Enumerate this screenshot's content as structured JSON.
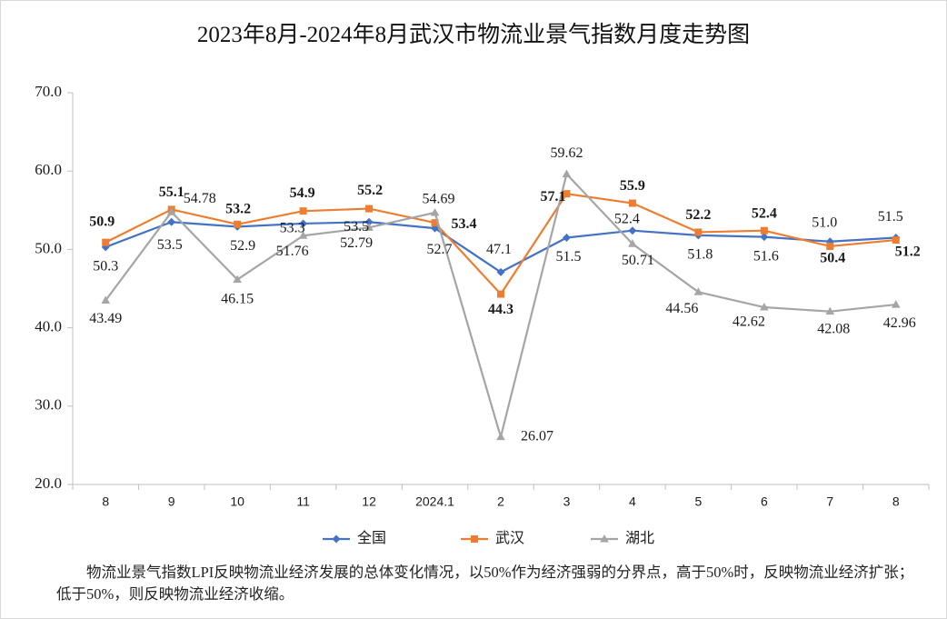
{
  "chart_data": {
    "type": "line",
    "title": "2023年8月-2024年8月武汉市物流业景气指数月度走势图",
    "categories": [
      "8",
      "9",
      "10",
      "11",
      "12",
      "2024.1",
      "2",
      "3",
      "4",
      "5",
      "6",
      "7",
      "8"
    ],
    "ylim": [
      20,
      70
    ],
    "yticks": [
      "20.0",
      "30.0",
      "40.0",
      "50.0",
      "60.0",
      "70.0"
    ],
    "grid": false,
    "legend_position": "bottom",
    "series": [
      {
        "name": "全国",
        "color": "#4472c4",
        "marker": "diamond",
        "values": [
          50.3,
          53.5,
          52.9,
          53.3,
          53.5,
          52.7,
          47.1,
          51.5,
          52.4,
          51.8,
          51.6,
          51.0,
          51.5
        ],
        "labels": [
          "50.3",
          "53.5",
          "52.9",
          "53.3",
          "53.5",
          "52.7",
          "47.1",
          "51.5",
          "52.4",
          "51.8",
          "51.6",
          "51.0",
          "51.5"
        ]
      },
      {
        "name": "武汉",
        "color": "#ed7d31",
        "marker": "square",
        "bold_labels": true,
        "values": [
          50.9,
          55.1,
          53.2,
          54.9,
          55.2,
          53.4,
          44.3,
          57.1,
          55.9,
          52.2,
          52.4,
          50.4,
          51.2
        ],
        "labels": [
          "50.9",
          "55.1",
          "53.2",
          "54.9",
          "55.2",
          "53.4",
          "44.3",
          "57.1",
          "55.9",
          "52.2",
          "52.4",
          "50.4",
          "51.2"
        ]
      },
      {
        "name": "湖北",
        "color": "#a5a5a5",
        "marker": "triangle",
        "values": [
          43.49,
          54.78,
          46.15,
          51.76,
          52.79,
          54.69,
          26.07,
          59.62,
          50.71,
          44.56,
          42.62,
          42.08,
          42.96
        ],
        "labels": [
          "43.49",
          "54.78",
          "46.15",
          "51.76",
          "52.79",
          "54.69",
          "26.07",
          "59.62",
          "50.71",
          "44.56",
          "42.62",
          "42.08",
          "42.96"
        ]
      }
    ]
  },
  "footnote": "物流业景气指数LPI反映物流业经济发展的总体变化情况，以50%作为经济强弱的分界点，高于50%时，反映物流业经济扩张；低于50%，则反映物流业经济收缩。"
}
